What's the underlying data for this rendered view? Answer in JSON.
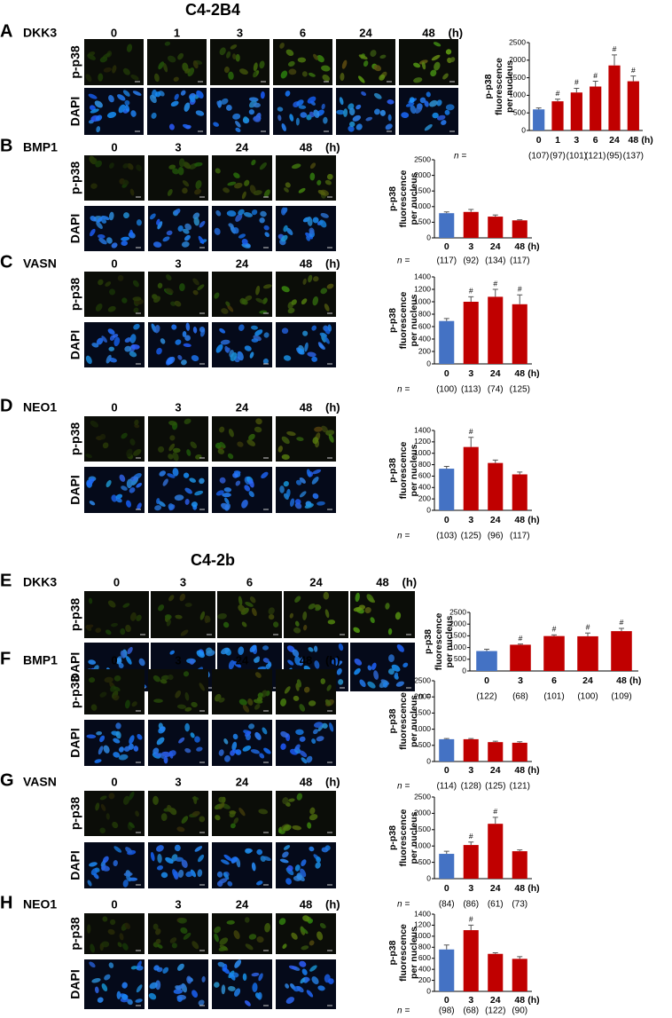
{
  "figure_titles": [
    "C4-2B4",
    "C4-2b"
  ],
  "channels": [
    "p-p38",
    "DAPI"
  ],
  "time_unit": "(h)",
  "n_prefix": "n =",
  "panels": [
    {
      "letter": "A",
      "gene": "DKK3",
      "times": [
        "0",
        "1",
        "3",
        "6",
        "24",
        "48"
      ]
    },
    {
      "letter": "B",
      "gene": "BMP1",
      "times": [
        "0",
        "3",
        "24",
        "48"
      ]
    },
    {
      "letter": "C",
      "gene": "VASN",
      "times": [
        "0",
        "3",
        "24",
        "48"
      ]
    },
    {
      "letter": "D",
      "gene": "NEO1",
      "times": [
        "0",
        "3",
        "24",
        "48"
      ]
    },
    {
      "letter": "E",
      "gene": "DKK3",
      "times": [
        "0",
        "3",
        "6",
        "24",
        "48"
      ]
    },
    {
      "letter": "F",
      "gene": "BMP1",
      "times": [
        "0",
        "3",
        "24",
        "48"
      ]
    },
    {
      "letter": "G",
      "gene": "VASN",
      "times": [
        "0",
        "3",
        "24",
        "48"
      ]
    },
    {
      "letter": "H",
      "gene": "NEO1",
      "times": [
        "0",
        "3",
        "24",
        "48"
      ]
    }
  ],
  "chart_data": [
    {
      "type": "bar",
      "ylabel": [
        "p-p38",
        "fluorescence",
        "per nucleus"
      ],
      "categories": [
        "0",
        "1",
        "3",
        "6",
        "24",
        "48"
      ],
      "values": [
        600,
        830,
        1080,
        1250,
        1850,
        1400
      ],
      "errors": [
        40,
        60,
        120,
        150,
        300,
        150
      ],
      "colors": [
        "#4472c4",
        "#c00000",
        "#c00000",
        "#c00000",
        "#c00000",
        "#c00000"
      ],
      "significance": [
        null,
        "#",
        "#",
        "#",
        "#",
        "#"
      ],
      "n_labels": [
        "(107)",
        "(97)",
        "(101)",
        "(121)",
        "(95)",
        "(137)"
      ],
      "ylim": [
        0,
        2500
      ],
      "yticks": [
        0,
        500,
        1000,
        1500,
        2000,
        2500
      ]
    },
    {
      "type": "bar",
      "ylabel": [
        "p-p38",
        "fluorescence",
        "per nucleus"
      ],
      "categories": [
        "0",
        "3",
        "24",
        "48"
      ],
      "values": [
        790,
        830,
        680,
        560
      ],
      "errors": [
        40,
        80,
        50,
        20
      ],
      "colors": [
        "#4472c4",
        "#c00000",
        "#c00000",
        "#c00000"
      ],
      "significance": [
        null,
        null,
        null,
        null
      ],
      "n_labels": [
        "(117)",
        "(92)",
        "(134)",
        "(117)"
      ],
      "ylim": [
        0,
        2500
      ],
      "yticks": [
        0,
        500,
        1000,
        1500,
        2000,
        2500
      ]
    },
    {
      "type": "bar",
      "ylabel": [
        "p-p38",
        "fluorescence",
        "per nucleus"
      ],
      "categories": [
        "0",
        "3",
        "24",
        "48"
      ],
      "values": [
        690,
        1000,
        1080,
        960
      ],
      "errors": [
        40,
        80,
        120,
        150
      ],
      "colors": [
        "#4472c4",
        "#c00000",
        "#c00000",
        "#c00000"
      ],
      "significance": [
        null,
        "#",
        "#",
        "#"
      ],
      "n_labels": [
        "(100)",
        "(113)",
        "(74)",
        "(125)"
      ],
      "ylim": [
        0,
        1400
      ],
      "yticks": [
        0,
        200,
        400,
        600,
        800,
        1000,
        1200,
        1400
      ]
    },
    {
      "type": "bar",
      "ylabel": [
        "p-p38",
        "fluorescence",
        "per nucleus"
      ],
      "categories": [
        "0",
        "3",
        "24",
        "48"
      ],
      "values": [
        730,
        1110,
        830,
        630
      ],
      "errors": [
        40,
        170,
        50,
        40
      ],
      "colors": [
        "#4472c4",
        "#c00000",
        "#c00000",
        "#c00000"
      ],
      "significance": [
        null,
        "#",
        null,
        null
      ],
      "n_labels": [
        "(103)",
        "(125)",
        "(96)",
        "(117)"
      ],
      "ylim": [
        0,
        1400
      ],
      "yticks": [
        0,
        200,
        400,
        600,
        800,
        1000,
        1200,
        1400
      ]
    },
    {
      "type": "bar",
      "ylabel": [
        "p-p38",
        "fluorescence",
        "per nucleus"
      ],
      "categories": [
        "0",
        "3",
        "6",
        "24",
        "48"
      ],
      "values": [
        850,
        1120,
        1490,
        1480,
        1700
      ],
      "errors": [
        80,
        30,
        50,
        140,
        120
      ],
      "colors": [
        "#4472c4",
        "#c00000",
        "#c00000",
        "#c00000",
        "#c00000"
      ],
      "significance": [
        null,
        "#",
        "#",
        "#",
        "#"
      ],
      "n_labels": [
        "(122)",
        "(68)",
        "(101)",
        "(100)",
        "(109)"
      ],
      "ylim": [
        0,
        2500
      ],
      "yticks": [
        0,
        500,
        1000,
        1500,
        2000,
        2500
      ]
    },
    {
      "type": "bar",
      "ylabel": [
        "p-p38",
        "fluorescence",
        "per nucleus"
      ],
      "categories": [
        "0",
        "3",
        "24",
        "48"
      ],
      "values": [
        690,
        690,
        600,
        580
      ],
      "errors": [
        20,
        20,
        30,
        30
      ],
      "colors": [
        "#4472c4",
        "#c00000",
        "#c00000",
        "#c00000"
      ],
      "significance": [
        null,
        null,
        null,
        null
      ],
      "n_labels": [
        "(114)",
        "(128)",
        "(125)",
        "(121)"
      ],
      "ylim": [
        0,
        2500
      ],
      "yticks": [
        0,
        500,
        1000,
        1500,
        2000,
        2500
      ]
    },
    {
      "type": "bar",
      "ylabel": [
        "p-p38",
        "fluorescence",
        "per nucleus"
      ],
      "categories": [
        "0",
        "3",
        "24",
        "48"
      ],
      "values": [
        760,
        1030,
        1680,
        840
      ],
      "errors": [
        80,
        90,
        200,
        40
      ],
      "colors": [
        "#4472c4",
        "#c00000",
        "#c00000",
        "#c00000"
      ],
      "significance": [
        null,
        "#",
        "#",
        null
      ],
      "n_labels": [
        "(84)",
        "(86)",
        "(61)",
        "(73)"
      ],
      "ylim": [
        0,
        2500
      ],
      "yticks": [
        0,
        500,
        1000,
        1500,
        2000,
        2500
      ]
    },
    {
      "type": "bar",
      "ylabel": [
        "p-p38",
        "fluorescence",
        "per nucleus"
      ],
      "categories": [
        "0",
        "3",
        "24",
        "48"
      ],
      "values": [
        760,
        1110,
        680,
        590
      ],
      "errors": [
        80,
        90,
        20,
        40
      ],
      "colors": [
        "#4472c4",
        "#c00000",
        "#c00000",
        "#c00000"
      ],
      "significance": [
        null,
        "#",
        null,
        null
      ],
      "n_labels": [
        "(98)",
        "(68)",
        "(122)",
        "(90)"
      ],
      "ylim": [
        0,
        1400
      ],
      "yticks": [
        0,
        200,
        400,
        600,
        800,
        1000,
        1200,
        1400
      ]
    }
  ]
}
